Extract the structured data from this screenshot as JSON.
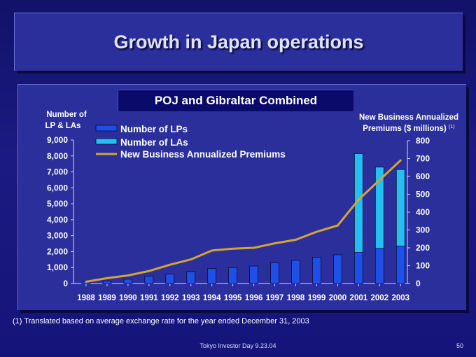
{
  "slide": {
    "title": "Growth in Japan operations",
    "footnote": "(1) Translated based on average exchange rate for the year ended December 31, 2003",
    "footer": "Tokyo Investor Day 9.23.04",
    "page_number": "50"
  },
  "colors": {
    "background": "#14147a",
    "panel": "#2a2f9c",
    "lps": "#1e4fe6",
    "las": "#22bff0",
    "premiums": "#d4a431"
  },
  "chart_data": {
    "type": "bar",
    "title": "POJ and Gibraltar Combined",
    "ylabel_left_line1": "Number of",
    "ylabel_left_line2": "LP & LAs",
    "ylabel_right_line1": "New Business Annualized",
    "ylabel_right_line2": "Premiums ($ millions)",
    "ylabel_right_note": "(1)",
    "categories": [
      "1988",
      "1989",
      "1990",
      "1991",
      "1992",
      "1993",
      "1994",
      "1995",
      "1996",
      "1997",
      "1998",
      "1999",
      "2000",
      "2001",
      "2002",
      "2003"
    ],
    "left_axis": {
      "min": 0,
      "max": 9000,
      "ticks": [
        "0",
        "1,000",
        "2,000",
        "3,000",
        "4,000",
        "5,000",
        "6,000",
        "7,000",
        "8,000",
        "9,000"
      ]
    },
    "right_axis": {
      "min": 0,
      "max": 800,
      "ticks": [
        "0",
        "100",
        "200",
        "300",
        "400",
        "500",
        "600",
        "700",
        "800"
      ]
    },
    "legend_position": "top-left",
    "series": [
      {
        "name": "Number of LPs",
        "kind": "bar",
        "axis": "left",
        "values": [
          120,
          150,
          270,
          450,
          600,
          750,
          950,
          1000,
          1100,
          1300,
          1450,
          1650,
          1800,
          1950,
          2200,
          2350
        ]
      },
      {
        "name": "Number of LAs",
        "kind": "bar-stacked",
        "axis": "left",
        "values": [
          0,
          0,
          0,
          0,
          0,
          0,
          0,
          0,
          0,
          0,
          0,
          0,
          0,
          6200,
          5100,
          4800
        ]
      },
      {
        "name": "New Business Annualized Premiums",
        "kind": "line",
        "axis": "right",
        "values": [
          10,
          30,
          45,
          70,
          105,
          135,
          185,
          195,
          200,
          225,
          245,
          290,
          325,
          470,
          580,
          690
        ]
      }
    ]
  }
}
